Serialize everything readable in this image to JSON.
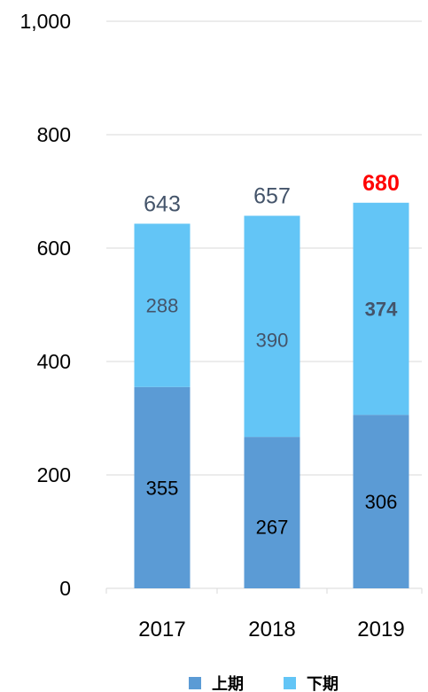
{
  "chart_data": {
    "type": "bar",
    "stacked": true,
    "categories": [
      "2017",
      "2018",
      "2019"
    ],
    "series": [
      {
        "name": "上期",
        "values": [
          355,
          267,
          306
        ],
        "color": "#5b9bd5"
      },
      {
        "name": "下期",
        "values": [
          288,
          390,
          374
        ],
        "color": "#63c5f6"
      }
    ],
    "totals": [
      "643",
      "657",
      "680"
    ],
    "ylim": [
      0,
      1000
    ],
    "yticks": [
      0,
      200,
      400,
      600,
      800,
      1000
    ],
    "ytick_labels": [
      "0",
      "200",
      "400",
      "600",
      "800",
      "1,000"
    ],
    "grid": true,
    "legend_position": "bottom",
    "highlight": {
      "category_index": 2,
      "total_color": "#ff0000",
      "bold_labels": true
    },
    "colors": {
      "axis_text": "#000000",
      "total_text": "#44546a",
      "grid": "#d9d9d9",
      "segment_label_dark": "#000000",
      "segment_label_slate": "#44546a"
    }
  }
}
